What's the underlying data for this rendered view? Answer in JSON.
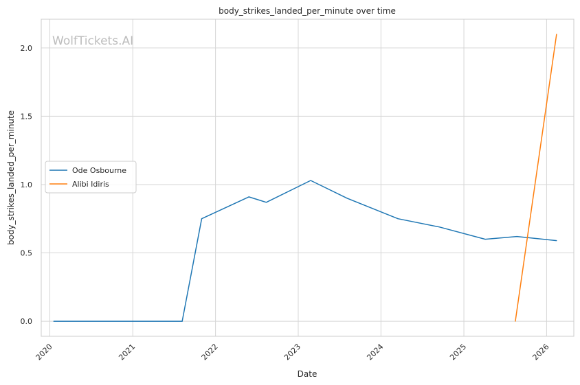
{
  "chart_data": {
    "type": "line",
    "title": "body_strikes_landed_per_minute over time",
    "xlabel": "Date",
    "ylabel": "body_strikes_landed_per_minute",
    "watermark": "WolfTickets.AI",
    "xlim": [
      "2019-11-24",
      "2026-05-01"
    ],
    "ylim": [
      -0.11,
      2.21
    ],
    "x_ticks": [
      "2020",
      "2021",
      "2022",
      "2023",
      "2024",
      "2025",
      "2026"
    ],
    "y_ticks": [
      "0.0",
      "0.5",
      "1.0",
      "1.5",
      "2.0"
    ],
    "grid": true,
    "legend_position": "center-left",
    "series": [
      {
        "name": "Ode Osbourne",
        "color": "#1f77b4",
        "points": [
          {
            "x": "2020-01-18",
            "y": 0.0
          },
          {
            "x": "2021-08-07",
            "y": 0.0
          },
          {
            "x": "2021-11-01",
            "y": 0.75
          },
          {
            "x": "2022-05-28",
            "y": 0.91
          },
          {
            "x": "2022-08-13",
            "y": 0.87
          },
          {
            "x": "2023-02-25",
            "y": 1.03
          },
          {
            "x": "2023-08-05",
            "y": 0.9
          },
          {
            "x": "2024-03-16",
            "y": 0.75
          },
          {
            "x": "2024-09-14",
            "y": 0.69
          },
          {
            "x": "2025-04-05",
            "y": 0.6
          },
          {
            "x": "2025-08-23",
            "y": 0.62
          },
          {
            "x": "2026-02-14",
            "y": 0.59
          }
        ]
      },
      {
        "name": "Alibi Idiris",
        "color": "#ff7f0e",
        "points": [
          {
            "x": "2025-08-16",
            "y": 0.0
          },
          {
            "x": "2026-02-14",
            "y": 2.1
          }
        ]
      }
    ]
  }
}
